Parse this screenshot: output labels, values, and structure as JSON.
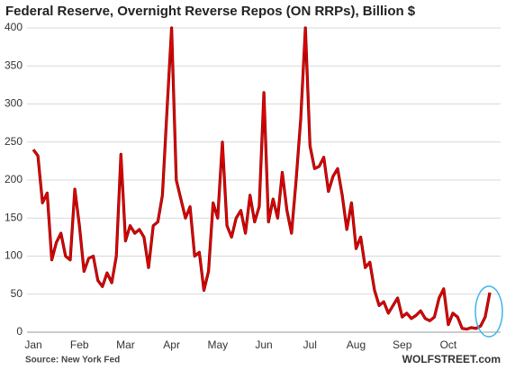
{
  "chart_data": {
    "type": "line",
    "title": "Federal Reserve, Overnight Reverse Repos (ON RRPs), Billion $",
    "source": "Source: New York Fed",
    "brand": "WOLFSTREET.com",
    "categories": [
      "Jan",
      null,
      null,
      null,
      null,
      null,
      null,
      null,
      null,
      null,
      "Feb",
      null,
      null,
      null,
      null,
      null,
      null,
      null,
      null,
      null,
      "Mar",
      null,
      null,
      null,
      null,
      null,
      null,
      null,
      null,
      null,
      "Apr",
      null,
      null,
      null,
      null,
      null,
      null,
      null,
      null,
      null,
      "May",
      null,
      null,
      null,
      null,
      null,
      null,
      null,
      null,
      null,
      "Jun",
      null,
      null,
      null,
      null,
      null,
      null,
      null,
      null,
      null,
      "Jul",
      null,
      null,
      null,
      null,
      null,
      null,
      null,
      null,
      null,
      "Aug",
      null,
      null,
      null,
      null,
      null,
      null,
      null,
      null,
      null,
      "Sep",
      null,
      null,
      null,
      null,
      null,
      null,
      null,
      null,
      null,
      "Oct",
      null,
      null,
      null,
      null,
      null,
      null,
      null,
      null,
      null
    ],
    "values": [
      240,
      232,
      170,
      183,
      95,
      118,
      130,
      100,
      95,
      188,
      140,
      80,
      97,
      100,
      68,
      60,
      78,
      65,
      100,
      234,
      120,
      140,
      130,
      135,
      125,
      85,
      140,
      145,
      180,
      292,
      400,
      200,
      175,
      150,
      165,
      100,
      105,
      55,
      80,
      170,
      150,
      250,
      140,
      125,
      150,
      160,
      130,
      180,
      145,
      165,
      315,
      145,
      175,
      150,
      210,
      160,
      130,
      200,
      280,
      400,
      245,
      215,
      218,
      230,
      185,
      205,
      215,
      180,
      135,
      170,
      110,
      125,
      85,
      92,
      55,
      35,
      40,
      25,
      35,
      45,
      20,
      25,
      18,
      22,
      28,
      18,
      15,
      20,
      45,
      57,
      10,
      25,
      20,
      5,
      4,
      6,
      5,
      8,
      20,
      52
    ],
    "color": "#e00000",
    "ylim": [
      0,
      400
    ],
    "yticks": [
      0,
      50,
      100,
      150,
      200,
      250,
      300,
      350,
      400
    ],
    "grid": true
  }
}
